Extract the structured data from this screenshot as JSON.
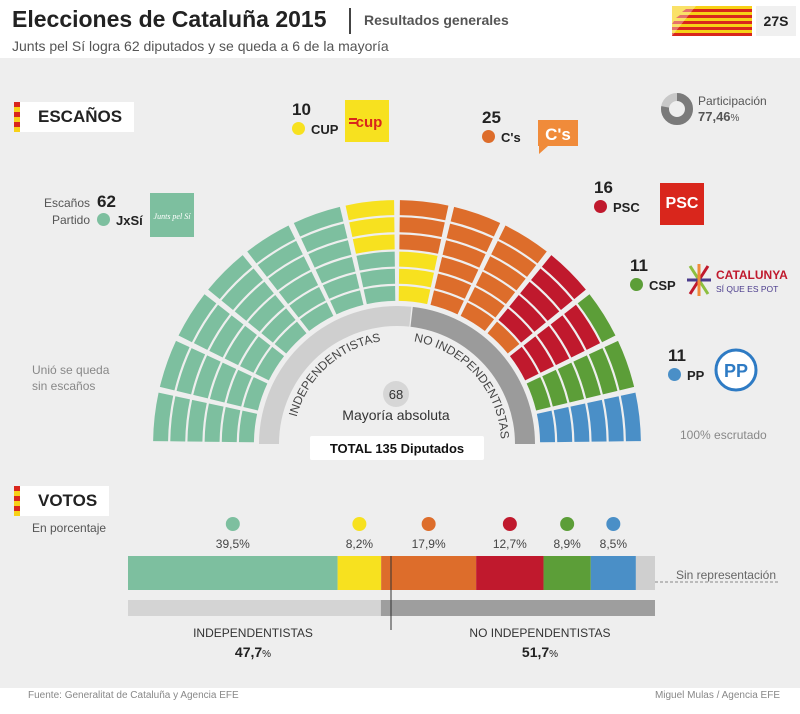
{
  "header": {
    "title": "Elecciones de Cataluña 2015",
    "subtitle": "Resultados generales",
    "lede": "Junts pel Sí logra 62 diputados y se queda a 6 de la mayoría",
    "date_badge": "27S"
  },
  "colors": {
    "jxsi": "#7dbf9f",
    "cup": "#f7e11f",
    "cs": "#dd6d2b",
    "psc": "#c0192d",
    "csp": "#5c9e38",
    "pp": "#4a8fc7",
    "other": "#cfcfcf"
  },
  "seats": {
    "section_label": "ESCAÑOS",
    "legend_seats_label": "Escaños",
    "legend_party_label": "Partido",
    "unio_note_line1": "Unió se queda",
    "unio_note_line2": "sin escaños",
    "scrutiny": "100% escrutado",
    "participation_label": "Participación",
    "participation_value": "77,46",
    "participation_unit": "%",
    "arc_left_label": "INDEPENDENTISTAS",
    "arc_right_label": "NO INDEPENDENTISTAS",
    "majority_number": "68",
    "majority_label": "Mayoría absoluta",
    "total_label": "TOTAL 135 Diputados",
    "parties": [
      {
        "id": "jxsi",
        "name": "JxSí",
        "seats": "62",
        "logo_text": "Junts pel Sí"
      },
      {
        "id": "cup",
        "name": "CUP",
        "seats": "10",
        "logo_text": "cup"
      },
      {
        "id": "cs",
        "name": "C's",
        "seats": "25",
        "logo_text": "C's"
      },
      {
        "id": "psc",
        "name": "PSC",
        "seats": "16",
        "logo_text": "PSC"
      },
      {
        "id": "csp",
        "name": "CSP",
        "seats": "11",
        "logo_text": "CATALUNYA",
        "logo_sub": "SÍ QUE ES POT"
      },
      {
        "id": "pp",
        "name": "PP",
        "seats": "11",
        "logo_text": "PP"
      }
    ]
  },
  "votes": {
    "section_label": "VOTOS",
    "unit_note": "En porcentaje",
    "no_rep_label": "Sin representación",
    "bloc_left_label": "INDEPENDENTISTAS",
    "bloc_left_value": "47,7",
    "bloc_right_label": "NO INDEPENDENTISTAS",
    "bloc_right_value": "51,7",
    "bloc_unit": "%"
  },
  "chart_data": {
    "type": "bar",
    "seats": [
      {
        "party": "JxSí",
        "value": 62
      },
      {
        "party": "CUP",
        "value": 10
      },
      {
        "party": "C's",
        "value": 25
      },
      {
        "party": "PSC",
        "value": 16
      },
      {
        "party": "CSP",
        "value": 11
      },
      {
        "party": "PP",
        "value": 11
      }
    ],
    "total_seats": 135,
    "majority": 68,
    "votes": [
      {
        "party": "JxSí",
        "value": 39.5,
        "label": "39,5%"
      },
      {
        "party": "CUP",
        "value": 8.2,
        "label": "8,2%"
      },
      {
        "party": "C's",
        "value": 17.9,
        "label": "17,9%"
      },
      {
        "party": "PSC",
        "value": 12.7,
        "label": "12,7%"
      },
      {
        "party": "CSP",
        "value": 8.9,
        "label": "8,9%"
      },
      {
        "party": "PP",
        "value": 8.5,
        "label": "8,5%"
      },
      {
        "party": "Sin representación",
        "value": 3.6
      }
    ],
    "blocs": [
      {
        "name": "INDEPENDENTISTAS",
        "value": 47.7
      },
      {
        "name": "NO INDEPENDENTISTAS",
        "value": 51.7
      }
    ]
  },
  "footer": {
    "source": "Fuente: Generalitat de Cataluña y Agencia EFE",
    "credit": "Miguel Mulas / Agencia EFE"
  }
}
